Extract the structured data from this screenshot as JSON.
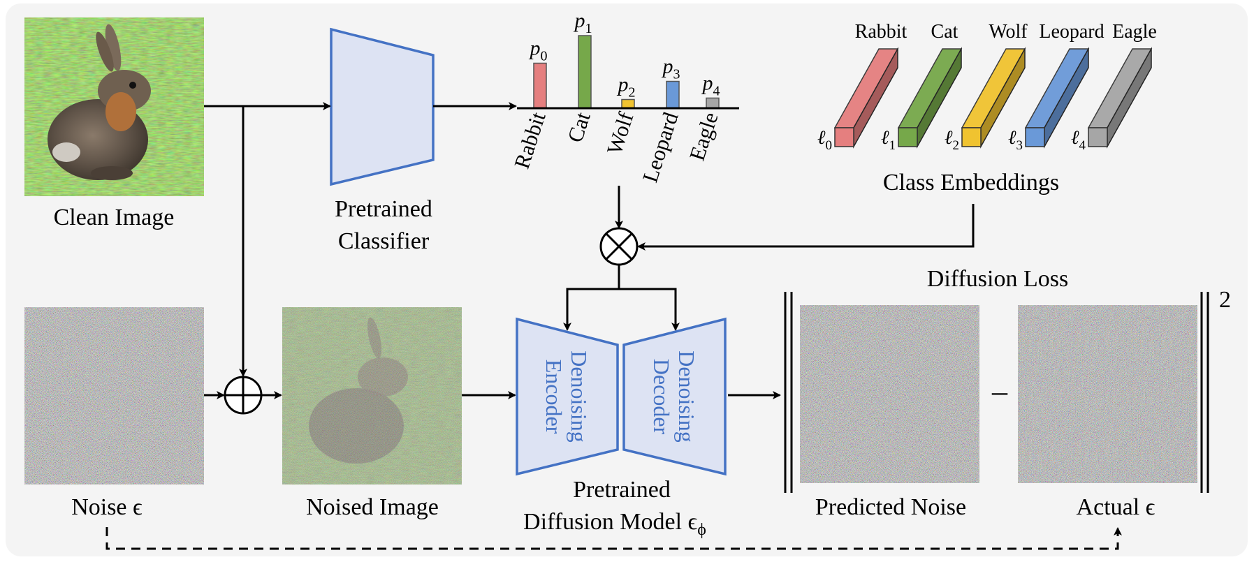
{
  "colors": {
    "panel_bg": "#f4f4f4",
    "blue_fill": "#dde3f3",
    "blue_stroke": "#4472c4",
    "rabbit": "#e57f7f",
    "cat": "#76a84a",
    "wolf": "#f0c330",
    "leopard": "#6a99d8",
    "eagle": "#a6a6a6"
  },
  "labels": {
    "clean_image": "Clean Image",
    "classifier_line1": "Pretrained",
    "classifier_line2": "Classifier",
    "class_embeddings": "Class Embeddings",
    "noise": "Noise ϵ",
    "noised_image": "Noised Image",
    "encoder_line1": "Denoising",
    "encoder_line2": "Encoder",
    "decoder_line1": "Denoising",
    "decoder_line2": "Decoder",
    "diffusion_line1": "Pretrained",
    "diffusion_line2": "Diffusion Model ϵ",
    "diffusion_sub": "ϕ",
    "diffusion_loss": "Diffusion Loss",
    "predicted_noise": "Predicted Noise",
    "actual_noise": "Actual ϵ",
    "minus": "–",
    "square": "2"
  },
  "classes": [
    {
      "name": "Rabbit",
      "prob_label": "p",
      "prob_sub": "0",
      "emb_label": "ℓ",
      "emb_sub": "0",
      "color_key": "rabbit",
      "prob": 0.62
    },
    {
      "name": "Cat",
      "prob_label": "p",
      "prob_sub": "1",
      "emb_label": "ℓ",
      "emb_sub": "1",
      "color_key": "cat",
      "prob": 1.0
    },
    {
      "name": "Wolf",
      "prob_label": "p",
      "prob_sub": "2",
      "emb_label": "ℓ",
      "emb_sub": "2",
      "color_key": "wolf",
      "prob": 0.12
    },
    {
      "name": "Leopard",
      "prob_label": "p",
      "prob_sub": "3",
      "emb_label": "ℓ",
      "emb_sub": "3",
      "color_key": "leopard",
      "prob": 0.37
    },
    {
      "name": "Eagle",
      "prob_label": "p",
      "prob_sub": "4",
      "emb_label": "ℓ",
      "emb_sub": "4",
      "color_key": "eagle",
      "prob": 0.14
    }
  ]
}
